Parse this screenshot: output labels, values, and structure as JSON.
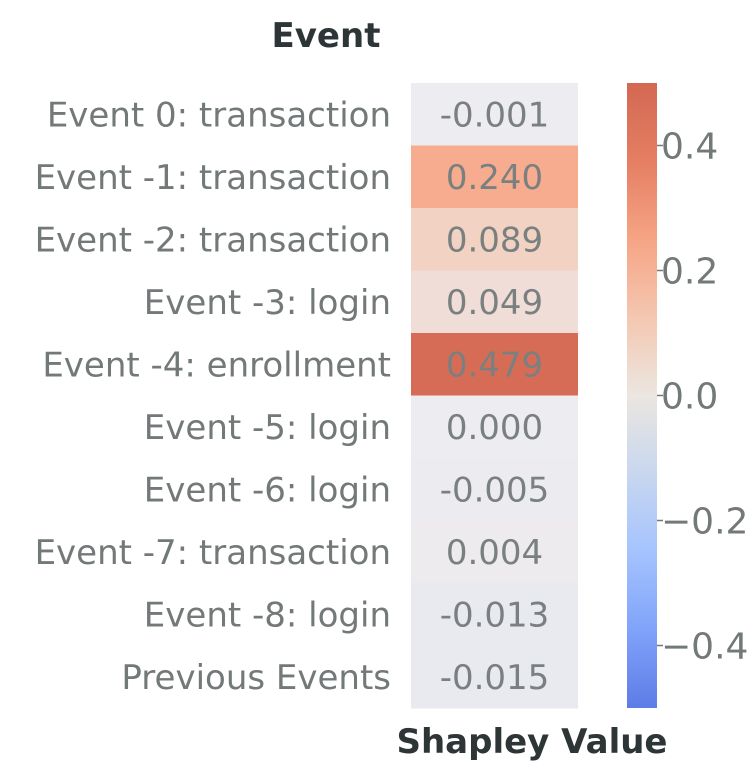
{
  "chart_data": {
    "type": "heatmap",
    "title": "Event",
    "xlabel": "Shapley Value",
    "rows": [
      {
        "label": "Event 0: transaction",
        "value": -0.001,
        "text": "-0.001"
      },
      {
        "label": "Event -1: transaction",
        "value": 0.24,
        "text": "0.240"
      },
      {
        "label": "Event -2: transaction",
        "value": 0.089,
        "text": "0.089"
      },
      {
        "label": "Event -3: login",
        "value": 0.049,
        "text": "0.049"
      },
      {
        "label": "Event -4: enrollment",
        "value": 0.479,
        "text": "0.479"
      },
      {
        "label": "Event -5: login",
        "value": 0.0,
        "text": "0.000"
      },
      {
        "label": "Event -6: login",
        "value": -0.005,
        "text": "-0.005"
      },
      {
        "label": "Event -7: transaction",
        "value": 0.004,
        "text": "0.004"
      },
      {
        "label": "Event -8: login",
        "value": -0.013,
        "text": "-0.013"
      },
      {
        "label": "Previous Events",
        "value": -0.015,
        "text": "-0.015"
      }
    ],
    "colormap": "coolwarm",
    "colorbar": {
      "vmin": -0.5,
      "vmax": 0.5,
      "ticks": [
        {
          "value": 0.4,
          "label": "0.4"
        },
        {
          "value": 0.2,
          "label": "0.2"
        },
        {
          "value": 0.0,
          "label": "0.0"
        },
        {
          "value": -0.2,
          "label": "−0.2"
        },
        {
          "value": -0.4,
          "label": "−0.4"
        }
      ]
    },
    "grid": false
  }
}
